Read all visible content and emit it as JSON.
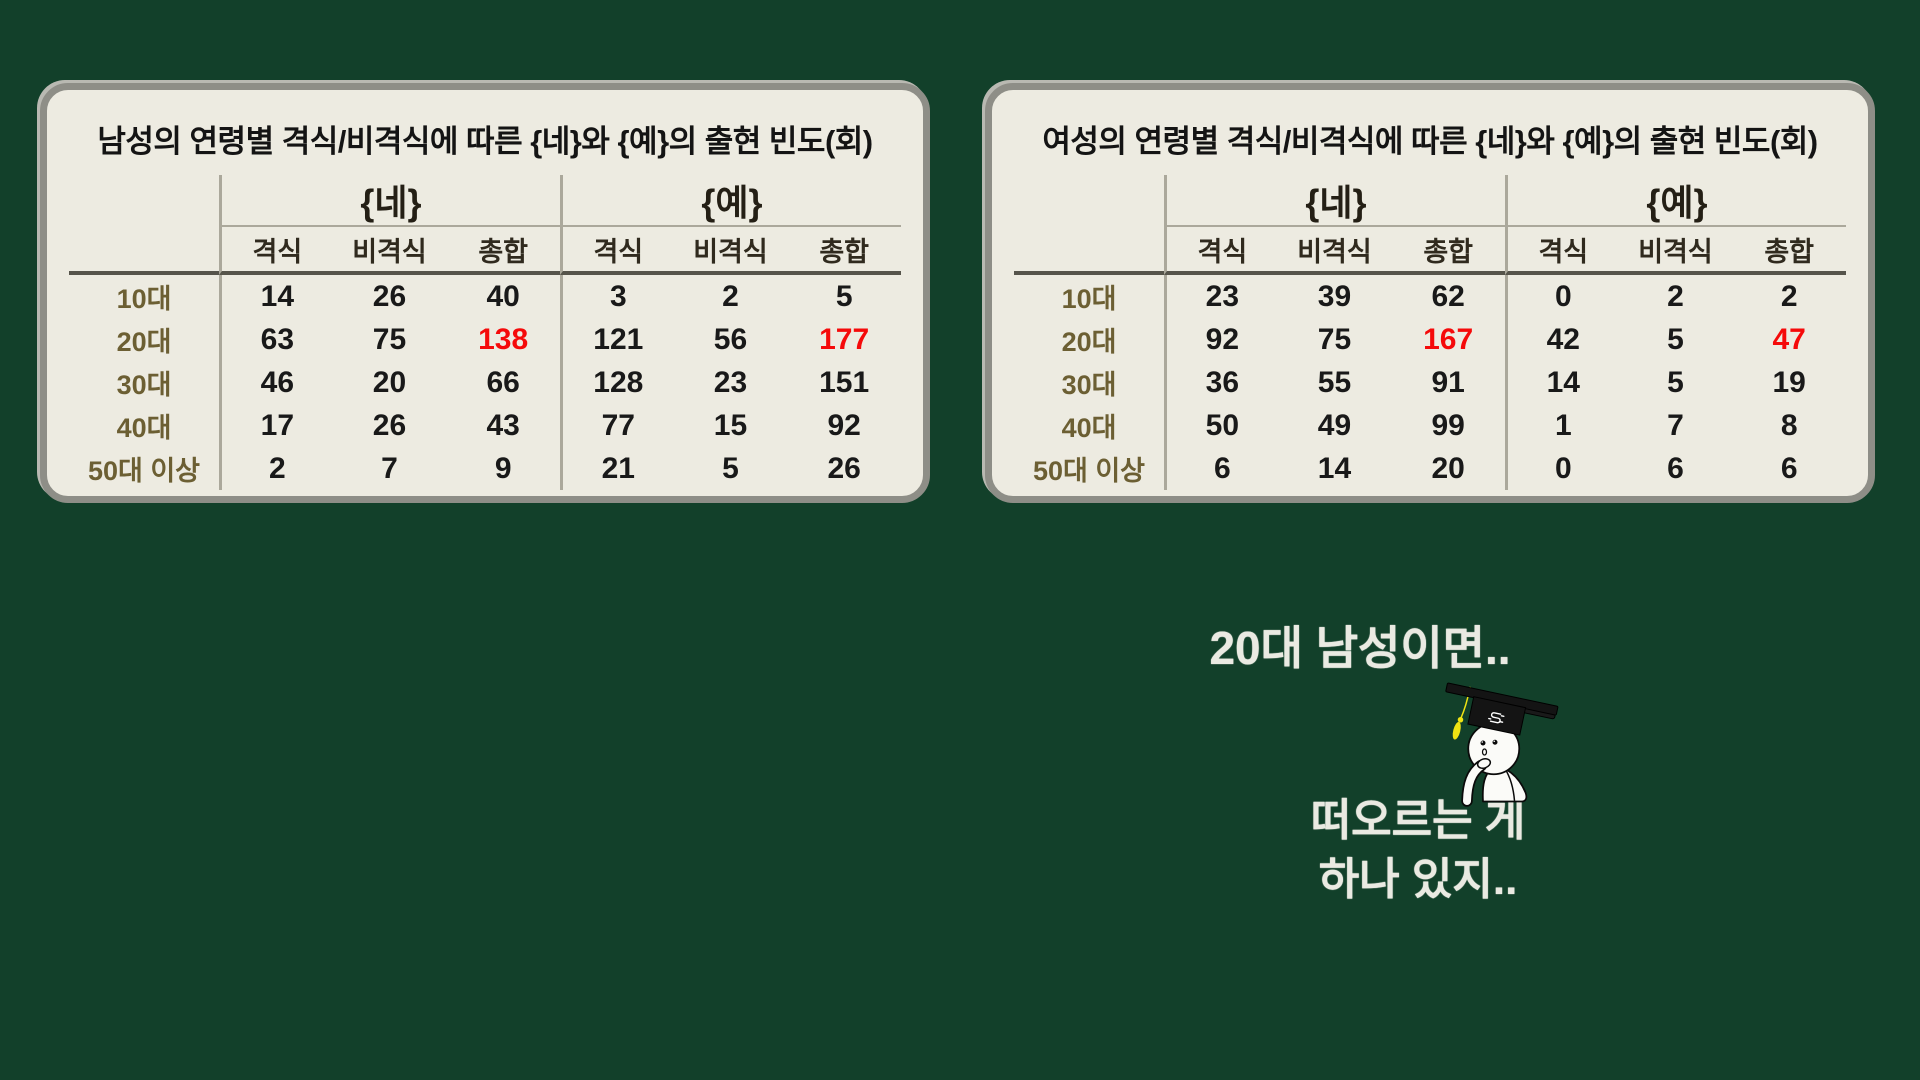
{
  "background_color": "#12402A",
  "panel": {
    "bg": "#EDEBE1",
    "border": "#8E8E87"
  },
  "chart_data": [
    {
      "type": "table",
      "title": "남성의 연령별 격식/비격식에 따른 {네}와 {예}의 출현 빈도(회)",
      "column_groups": [
        "{네}",
        "{예}"
      ],
      "sub_columns": [
        "격식",
        "비격식",
        "총합",
        "격식",
        "비격식",
        "총합"
      ],
      "row_labels": [
        "10대",
        "20대",
        "30대",
        "40대",
        "50대 이상"
      ],
      "rows": [
        [
          14,
          26,
          40,
          3,
          2,
          5
        ],
        [
          63,
          75,
          138,
          121,
          56,
          177
        ],
        [
          46,
          20,
          66,
          128,
          23,
          151
        ],
        [
          17,
          26,
          43,
          77,
          15,
          92
        ],
        [
          2,
          7,
          9,
          21,
          5,
          26
        ]
      ],
      "highlight_cells": [
        {
          "row": 1,
          "col": 2
        },
        {
          "row": 1,
          "col": 5
        }
      ],
      "highlight_color": "#F50A0A"
    },
    {
      "type": "table",
      "title": "여성의 연령별 격식/비격식에 따른 {네}와 {예}의 출현 빈도(회)",
      "column_groups": [
        "{네}",
        "{예}"
      ],
      "sub_columns": [
        "격식",
        "비격식",
        "총합",
        "격식",
        "비격식",
        "총합"
      ],
      "row_labels": [
        "10대",
        "20대",
        "30대",
        "40대",
        "50대 이상"
      ],
      "rows": [
        [
          23,
          39,
          62,
          0,
          2,
          2
        ],
        [
          92,
          75,
          167,
          42,
          5,
          47
        ],
        [
          36,
          55,
          91,
          14,
          5,
          19
        ],
        [
          50,
          49,
          99,
          1,
          7,
          8
        ],
        [
          6,
          14,
          20,
          0,
          6,
          6
        ]
      ],
      "highlight_cells": [
        {
          "row": 1,
          "col": 2
        },
        {
          "row": 1,
          "col": 5
        }
      ],
      "highlight_color": "#F50A0A"
    }
  ],
  "speech": {
    "line1": "20대 남성이면..",
    "line2": "떠오르는 게",
    "line3": "하나 있지.."
  },
  "character": {
    "cap_logo_letter": "S",
    "colors": {
      "tassel": "#F0E313",
      "cap": "#141414",
      "body": "#FBFBF8",
      "outline": "#0A0A0A"
    }
  },
  "text_colors": {
    "row_label": "#6C5F33",
    "value": "#191919",
    "speech": "#EAEAE2"
  }
}
